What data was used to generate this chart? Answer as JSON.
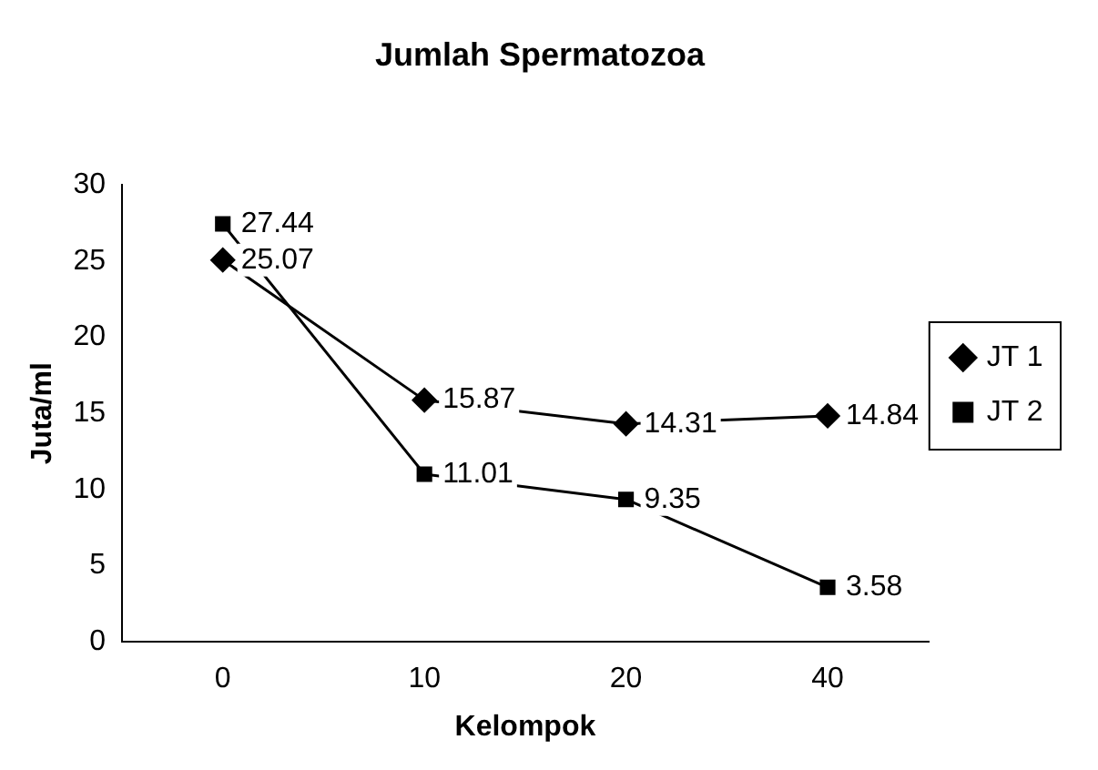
{
  "chart_data": {
    "type": "line",
    "title": "Jumlah Spermatozoa",
    "xlabel": "Kelompok",
    "ylabel": "Juta/ml",
    "categories": [
      "0",
      "10",
      "20",
      "40"
    ],
    "series": [
      {
        "name": "JT 1",
        "color": "#000000",
        "marker": "diamond",
        "values": [
          25.07,
          15.87,
          14.31,
          14.84
        ]
      },
      {
        "name": "JT 2",
        "color": "#000000",
        "marker": "square",
        "values": [
          27.44,
          11.01,
          9.35,
          3.58
        ]
      }
    ],
    "ylim": [
      0,
      30
    ],
    "yticks": [
      0,
      5,
      10,
      15,
      20,
      25,
      30
    ],
    "grid": false,
    "legend": "right",
    "data_labels": true,
    "line_style": "solid"
  }
}
